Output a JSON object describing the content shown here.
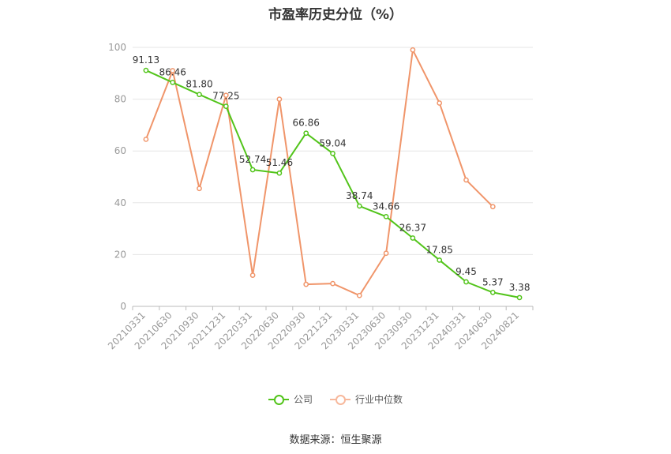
{
  "chart_data": {
    "type": "line",
    "title": "市盈率历史分位（%）",
    "categories": [
      "20210331",
      "20210630",
      "20210930",
      "20211231",
      "20220331",
      "20220630",
      "20220930",
      "20221231",
      "20230331",
      "20230630",
      "20230930",
      "20231231",
      "20240331",
      "20240630",
      "20240821"
    ],
    "series": [
      {
        "name": "公司",
        "color": "#52c41a",
        "values": [
          91.13,
          86.46,
          81.8,
          77.25,
          52.74,
          51.46,
          66.86,
          59.04,
          38.74,
          34.66,
          26.37,
          17.85,
          9.45,
          5.37,
          3.38
        ],
        "labels": [
          "91.13",
          "86.46",
          "81.80",
          "77.25",
          "52.74",
          "51.46",
          "66.86",
          "59.04",
          "38.74",
          "34.66",
          "26.37",
          "17.85",
          "9.45",
          "5.37",
          "3.38"
        ]
      },
      {
        "name": "行业中位数",
        "color": "#f0956a",
        "values": [
          64.5,
          91.0,
          45.5,
          81.5,
          12.0,
          80.0,
          8.5,
          8.8,
          4.2,
          20.5,
          99.0,
          78.5,
          48.8,
          38.5,
          null
        ]
      }
    ],
    "ylim": [
      0,
      100
    ],
    "yticks": [
      0,
      20,
      40,
      60,
      80,
      100
    ],
    "grid": true,
    "legend_position": "bottom-center"
  },
  "legend": {
    "company": "公司",
    "industry": "行业中位数"
  },
  "source": "数据来源：恒生聚源"
}
